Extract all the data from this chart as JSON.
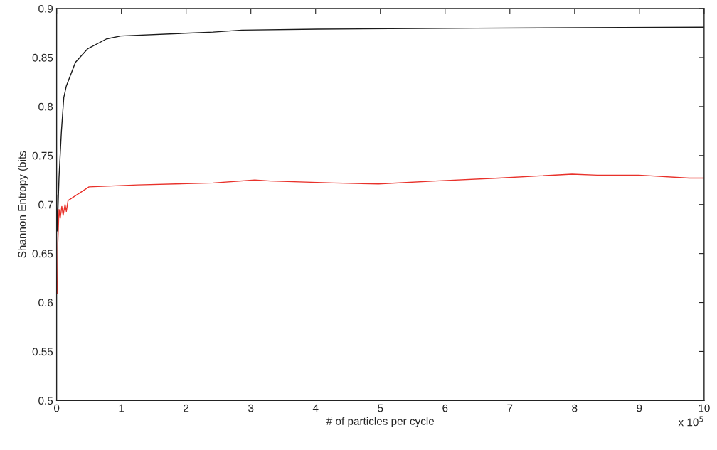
{
  "chart_data": {
    "type": "line",
    "xlabel": "# of particles per cycle",
    "ylabel": "Shannon Entropy (bits",
    "annotations": [
      "x 10$^{5}$"
    ],
    "xlim": [
      0,
      10
    ],
    "xticks": [
      0,
      1,
      2,
      3,
      4,
      5,
      6,
      7,
      8,
      9,
      10
    ],
    "ylim": [
      0.5,
      0.9
    ],
    "yticks": [
      0.5,
      0.55,
      0.6,
      0.65,
      0.7,
      0.75,
      0.8,
      0.85,
      0.9
    ],
    "grid": false,
    "series": [
      {
        "color": "#1a1a1a",
        "x": [
          0.0,
          0.01,
          0.037,
          0.073,
          0.11,
          0.15,
          0.29,
          0.48,
          0.77,
          0.99,
          2.42,
          2.86,
          4.03,
          6.48,
          10
        ],
        "values": [
          0.71,
          0.673,
          0.728,
          0.774,
          0.809,
          0.821,
          0.845,
          0.859,
          0.869,
          0.872,
          0.876,
          0.878,
          0.879,
          0.88,
          0.881
        ]
      },
      {
        "color": "#e8312a",
        "x": [
          0.01,
          0.018,
          0.037,
          0.055,
          0.08,
          0.1,
          0.13,
          0.15,
          0.176,
          0.5,
          1.25,
          2.42,
          3.06,
          3.3,
          4.28,
          4.97,
          5.85,
          6.83,
          7.96,
          8.35,
          8.99,
          9.77,
          10
        ],
        "values": [
          0.609,
          0.66,
          0.695,
          0.686,
          0.698,
          0.689,
          0.7,
          0.693,
          0.704,
          0.718,
          0.72,
          0.722,
          0.725,
          0.724,
          0.722,
          0.721,
          0.724,
          0.727,
          0.731,
          0.73,
          0.73,
          0.727,
          0.727
        ]
      }
    ]
  }
}
